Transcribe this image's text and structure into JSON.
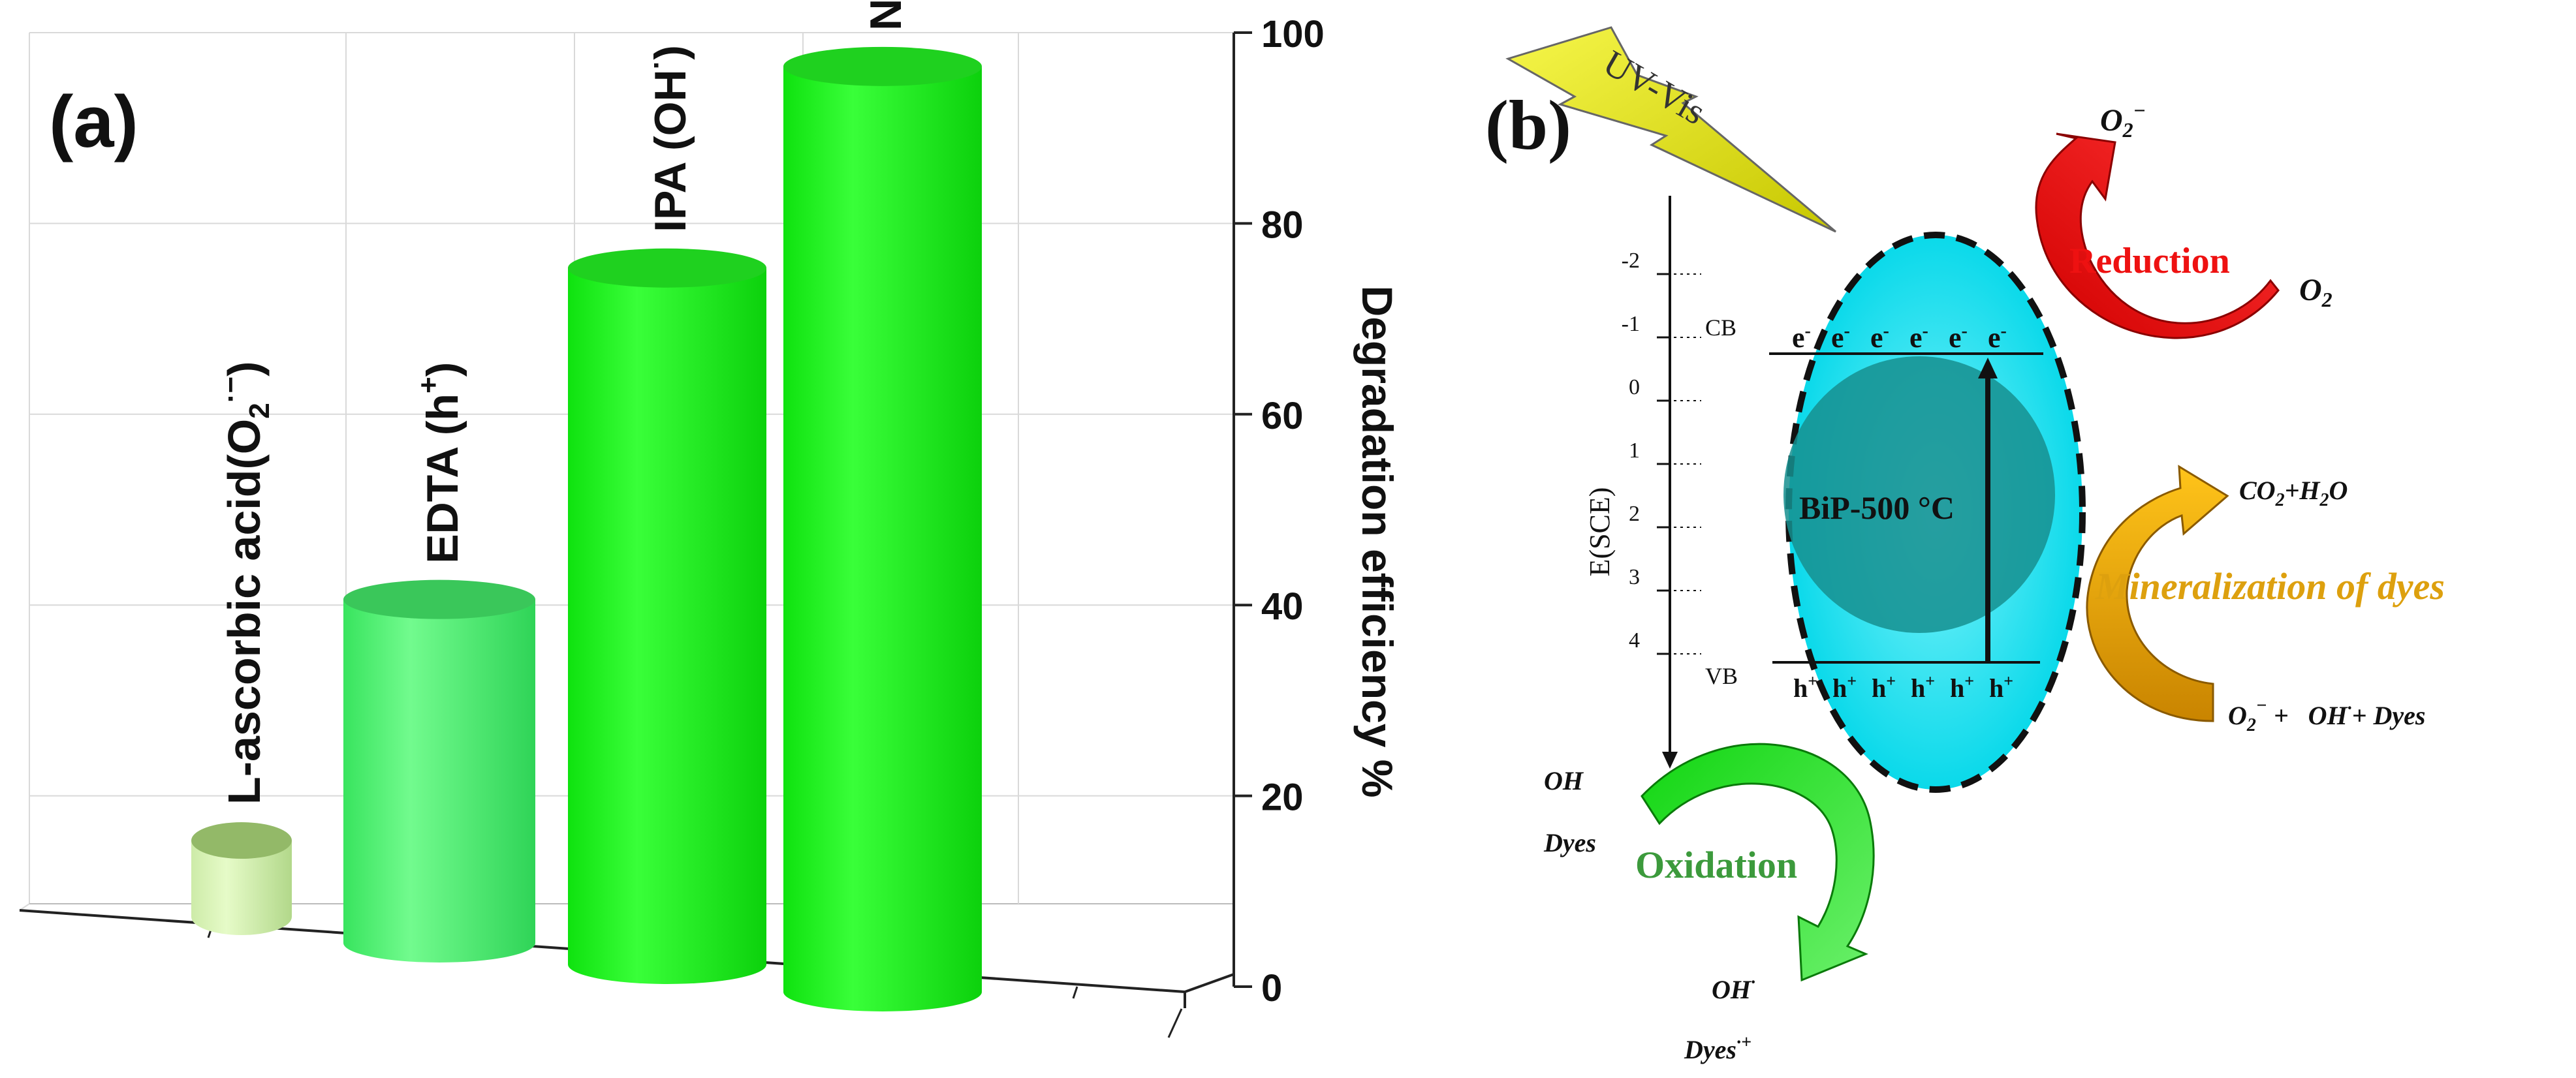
{
  "chart_data": {
    "type": "bar",
    "style": "3d-cylinder",
    "panel_label": "(a)",
    "categories": [
      "L-ascorbic acid(O2·−)",
      "EDTA (h+)",
      "IPA (OH·)",
      "No Scavengers"
    ],
    "category_labels": [
      {
        "main": "L-ascorbic acid(O",
        "sub": "2",
        "sup": "·−",
        "tail": ")"
      },
      {
        "main": "EDTA (h",
        "sup": "+",
        "tail": ")"
      },
      {
        "main": "IPA (OH",
        "sup": "·",
        "tail": ")"
      },
      {
        "main": "No Scavengers"
      }
    ],
    "values": [
      8,
      36,
      73,
      97
    ],
    "colors": [
      "#c6f29a",
      "#4cef6a",
      "#12ef12",
      "#12ef12"
    ],
    "top_colors": [
      "#93b968",
      "#3ac75a",
      "#1fd11f",
      "#1fd11f"
    ],
    "ylabel": "Degradation efficiency %",
    "ylim": [
      0,
      100
    ],
    "yticks": [
      0,
      20,
      40,
      60,
      80,
      100
    ],
    "grid": true
  },
  "diagram": {
    "panel_label": "(b)",
    "light_label": "UV-Vis",
    "axis_label": "E(SCE)",
    "potential_ticks": [
      "-2",
      "-1",
      "0",
      "1",
      "2",
      "3",
      "4"
    ],
    "cb_label": "CB",
    "vb_label": "VB",
    "electron": "e",
    "electron_sup": "-",
    "hole": "h",
    "hole_sup": "+",
    "catalyst_label": "BiP-500 °C",
    "reduction": {
      "label": "Reduction",
      "reactant": "O",
      "reactant_sub": "2",
      "product": "O",
      "product_sub": "2",
      "product_sup": "−",
      "color": "#ee1111"
    },
    "mineralization": {
      "label": "Mineralization of dyes",
      "reactant_a": "O",
      "reactant_a_sub": "2",
      "reactant_a_sup": "−",
      "reactant_b": "+",
      "reactant_c": "OH",
      "reactant_c_sup": "·",
      "reactant_d": "+ Dyes",
      "product_a": "CO",
      "product_a_sub": "2",
      "product_b": "+H",
      "product_b_sub": "2",
      "product_c": "O",
      "color": "#dda00e"
    },
    "oxidation": {
      "label": "Oxidation",
      "in_1": "OH",
      "in_2": "Dyes",
      "out_1": "OH",
      "out_1_sup": "·",
      "out_2": "Dyes",
      "out_2_sup": "·+",
      "color": "#3c9a3c"
    }
  }
}
